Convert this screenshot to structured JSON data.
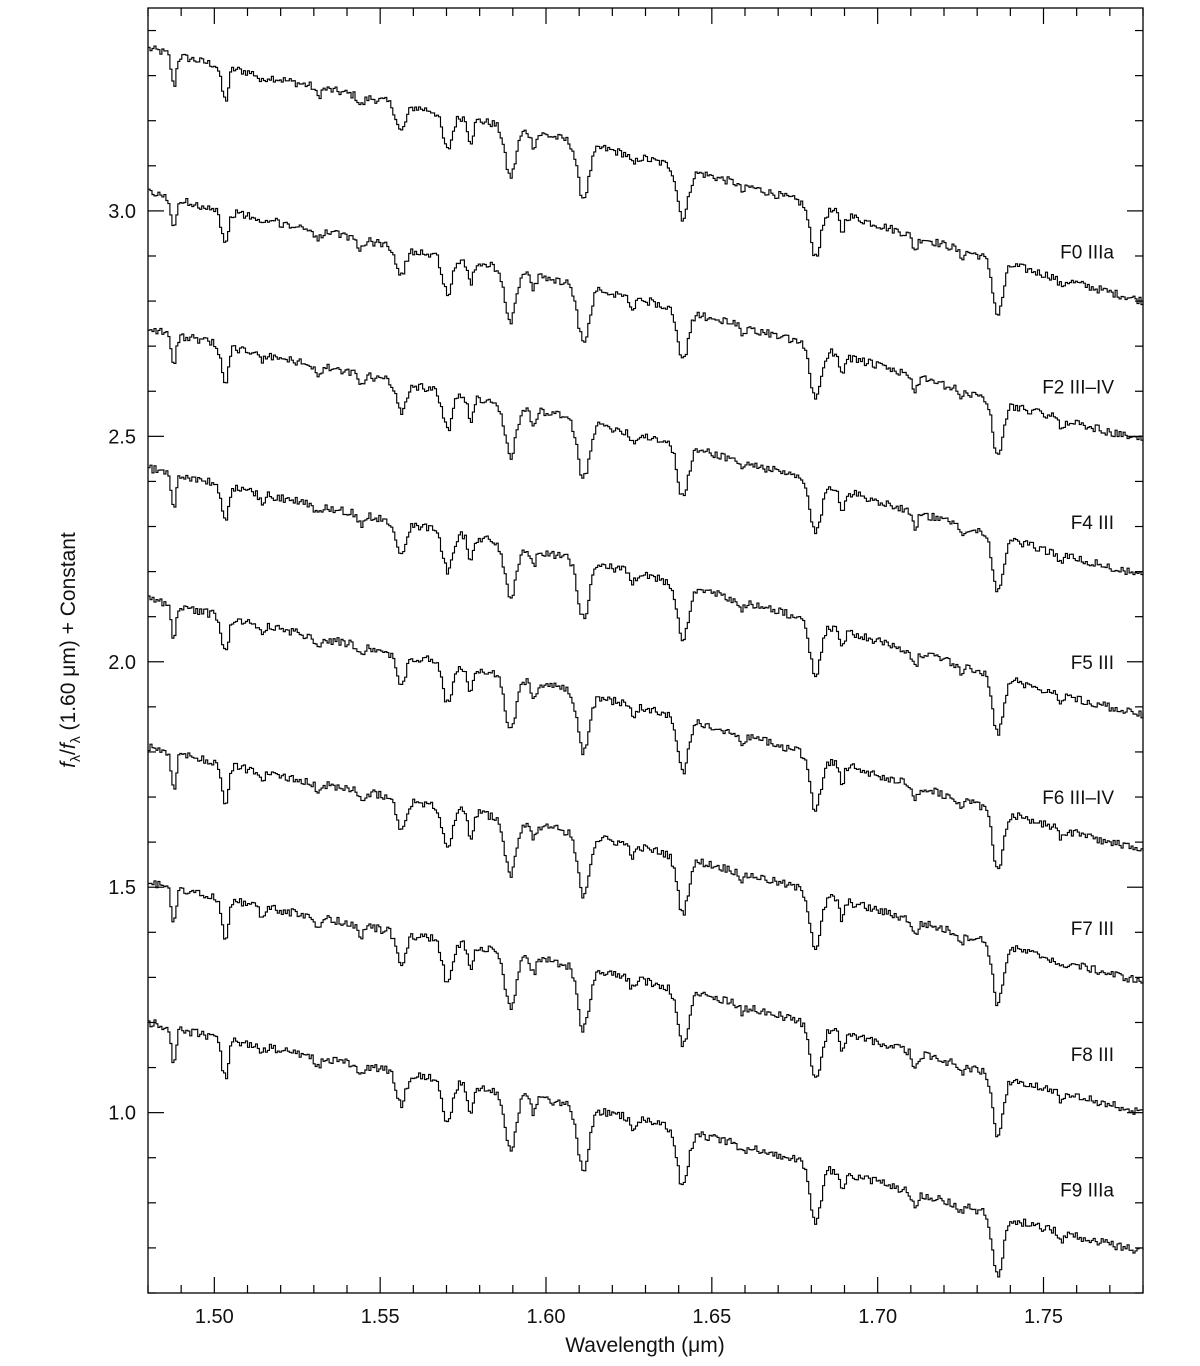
{
  "chart_data": {
    "type": "line",
    "title": "",
    "xlabel": "Wavelength (μm)",
    "ylabel_parts": {
      "f1": "f",
      "sub1": "λ",
      "slash": "/",
      "f2": "f",
      "sub2": "λ",
      "rest": " (1.60 μm) + Constant"
    },
    "xlim": [
      1.48,
      1.78
    ],
    "ylim": [
      0.6,
      3.45
    ],
    "x_ticks": [
      1.5,
      1.55,
      1.6,
      1.65,
      1.7,
      1.75
    ],
    "x_tick_labels": [
      "1.50",
      "1.55",
      "1.60",
      "1.65",
      "1.70",
      "1.75"
    ],
    "y_ticks": [
      1.0,
      1.5,
      2.0,
      2.5,
      3.0
    ],
    "y_tick_labels": [
      "1.0",
      "1.5",
      "2.0",
      "2.5",
      "3.0"
    ],
    "x_minor_step": 0.01,
    "y_minor_step": 0.1,
    "grid": false,
    "line_color": "#000000",
    "absorption_lines_um": [
      {
        "x": 1.4875,
        "depth": 0.07,
        "width": 0.0007
      },
      {
        "x": 1.5025,
        "depth": 0.05,
        "width": 0.0009
      },
      {
        "x": 1.5035,
        "depth": 0.04,
        "width": 0.0007
      },
      {
        "x": 1.514,
        "depth": 0.015,
        "width": 0.0008
      },
      {
        "x": 1.531,
        "depth": 0.02,
        "width": 0.0008
      },
      {
        "x": 1.544,
        "depth": 0.02,
        "width": 0.0009
      },
      {
        "x": 1.556,
        "depth": 0.06,
        "width": 0.0014
      },
      {
        "x": 1.57,
        "depth": 0.08,
        "width": 0.0014
      },
      {
        "x": 1.577,
        "depth": 0.05,
        "width": 0.0008
      },
      {
        "x": 1.589,
        "depth": 0.11,
        "width": 0.0016
      },
      {
        "x": 1.596,
        "depth": 0.03,
        "width": 0.0008
      },
      {
        "x": 1.611,
        "depth": 0.12,
        "width": 0.0017
      },
      {
        "x": 1.626,
        "depth": 0.02,
        "width": 0.0009
      },
      {
        "x": 1.641,
        "depth": 0.11,
        "width": 0.0016
      },
      {
        "x": 1.659,
        "depth": 0.015,
        "width": 0.0008
      },
      {
        "x": 1.681,
        "depth": 0.11,
        "width": 0.0016
      },
      {
        "x": 1.689,
        "depth": 0.04,
        "width": 0.0007
      },
      {
        "x": 1.711,
        "depth": 0.03,
        "width": 0.0008
      },
      {
        "x": 1.725,
        "depth": 0.015,
        "width": 0.0008
      },
      {
        "x": 1.736,
        "depth": 0.12,
        "width": 0.0015
      },
      {
        "x": 1.755,
        "depth": 0.015,
        "width": 0.0009
      }
    ],
    "series": [
      {
        "name": "F0 IIIa",
        "label_y": 2.91,
        "y_start": 3.36,
        "y_end": 2.8
      },
      {
        "name": "F2 III–IV",
        "label_y": 2.61,
        "y_start": 3.04,
        "y_end": 2.49
      },
      {
        "name": "F4 III",
        "label_y": 2.31,
        "y_start": 2.74,
        "y_end": 2.19
      },
      {
        "name": "F5 III",
        "label_y": 2.0,
        "y_start": 2.43,
        "y_end": 1.88
      },
      {
        "name": "F6 III–IV",
        "label_y": 1.7,
        "y_start": 2.14,
        "y_end": 1.58
      },
      {
        "name": "F7 III",
        "label_y": 1.41,
        "y_start": 1.81,
        "y_end": 1.29
      },
      {
        "name": "F8 III",
        "label_y": 1.13,
        "y_start": 1.51,
        "y_end": 1.0
      },
      {
        "name": "F9 IIIa",
        "label_y": 0.83,
        "y_start": 1.2,
        "y_end": 0.69
      }
    ]
  }
}
